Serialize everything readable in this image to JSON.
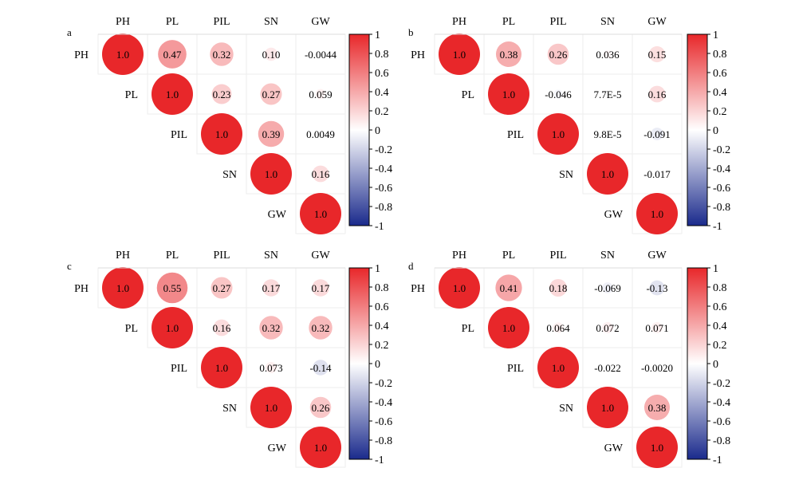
{
  "variables": [
    "PH",
    "PL",
    "PIL",
    "SN",
    "GW"
  ],
  "colorbar": {
    "ticks": [
      "1",
      "0.8",
      "0.6",
      "0.4",
      "0.2",
      "0",
      "-0.2",
      "-0.4",
      "-0.6",
      "-0.8",
      "-1"
    ],
    "colors": {
      "positive": "#e8272a",
      "zero": "#ffffff",
      "negative": "#1a2a8c"
    }
  },
  "chart_data": [
    {
      "type": "heatmap",
      "panel_label": "a",
      "variables": [
        "PH",
        "PL",
        "PIL",
        "SN",
        "GW"
      ],
      "color_range": [
        -1,
        1
      ],
      "cells": [
        [
          "1.0",
          "0.47",
          "0.32",
          "0.10",
          "-0.0044"
        ],
        [
          null,
          "1.0",
          "0.23",
          "0.27",
          "0.059"
        ],
        [
          null,
          null,
          "1.0",
          "0.39",
          "0.0049"
        ],
        [
          null,
          null,
          null,
          "1.0",
          "0.16"
        ],
        [
          null,
          null,
          null,
          null,
          "1.0"
        ]
      ]
    },
    {
      "type": "heatmap",
      "panel_label": "b",
      "variables": [
        "PH",
        "PL",
        "PIL",
        "SN",
        "GW"
      ],
      "color_range": [
        -1,
        1
      ],
      "cells": [
        [
          "1.0",
          "0.38",
          "0.26",
          "0.036",
          "0.15"
        ],
        [
          null,
          "1.0",
          "-0.046",
          "7.7E-5",
          "0.16"
        ],
        [
          null,
          null,
          "1.0",
          "9.8E-5",
          "-0.091"
        ],
        [
          null,
          null,
          null,
          "1.0",
          "-0.017"
        ],
        [
          null,
          null,
          null,
          null,
          "1.0"
        ]
      ]
    },
    {
      "type": "heatmap",
      "panel_label": "c",
      "variables": [
        "PH",
        "PL",
        "PIL",
        "SN",
        "GW"
      ],
      "color_range": [
        -1,
        1
      ],
      "cells": [
        [
          "1.0",
          "0.55",
          "0.27",
          "0.17",
          "0.17"
        ],
        [
          null,
          "1.0",
          "0.16",
          "0.32",
          "0.32"
        ],
        [
          null,
          null,
          "1.0",
          "0.073",
          "-0.14"
        ],
        [
          null,
          null,
          null,
          "1.0",
          "0.26"
        ],
        [
          null,
          null,
          null,
          null,
          "1.0"
        ]
      ]
    },
    {
      "type": "heatmap",
      "panel_label": "d",
      "variables": [
        "PH",
        "PL",
        "PIL",
        "SN",
        "GW"
      ],
      "color_range": [
        -1,
        1
      ],
      "cells": [
        [
          "1.0",
          "0.41",
          "0.18",
          "-0.069",
          "-0.13"
        ],
        [
          null,
          "1.0",
          "0.064",
          "0.072",
          "0.071"
        ],
        [
          null,
          null,
          "1.0",
          "-0.022",
          "-0.0020"
        ],
        [
          null,
          null,
          null,
          "1.0",
          "0.38"
        ],
        [
          null,
          null,
          null,
          null,
          "1.0"
        ]
      ]
    }
  ]
}
